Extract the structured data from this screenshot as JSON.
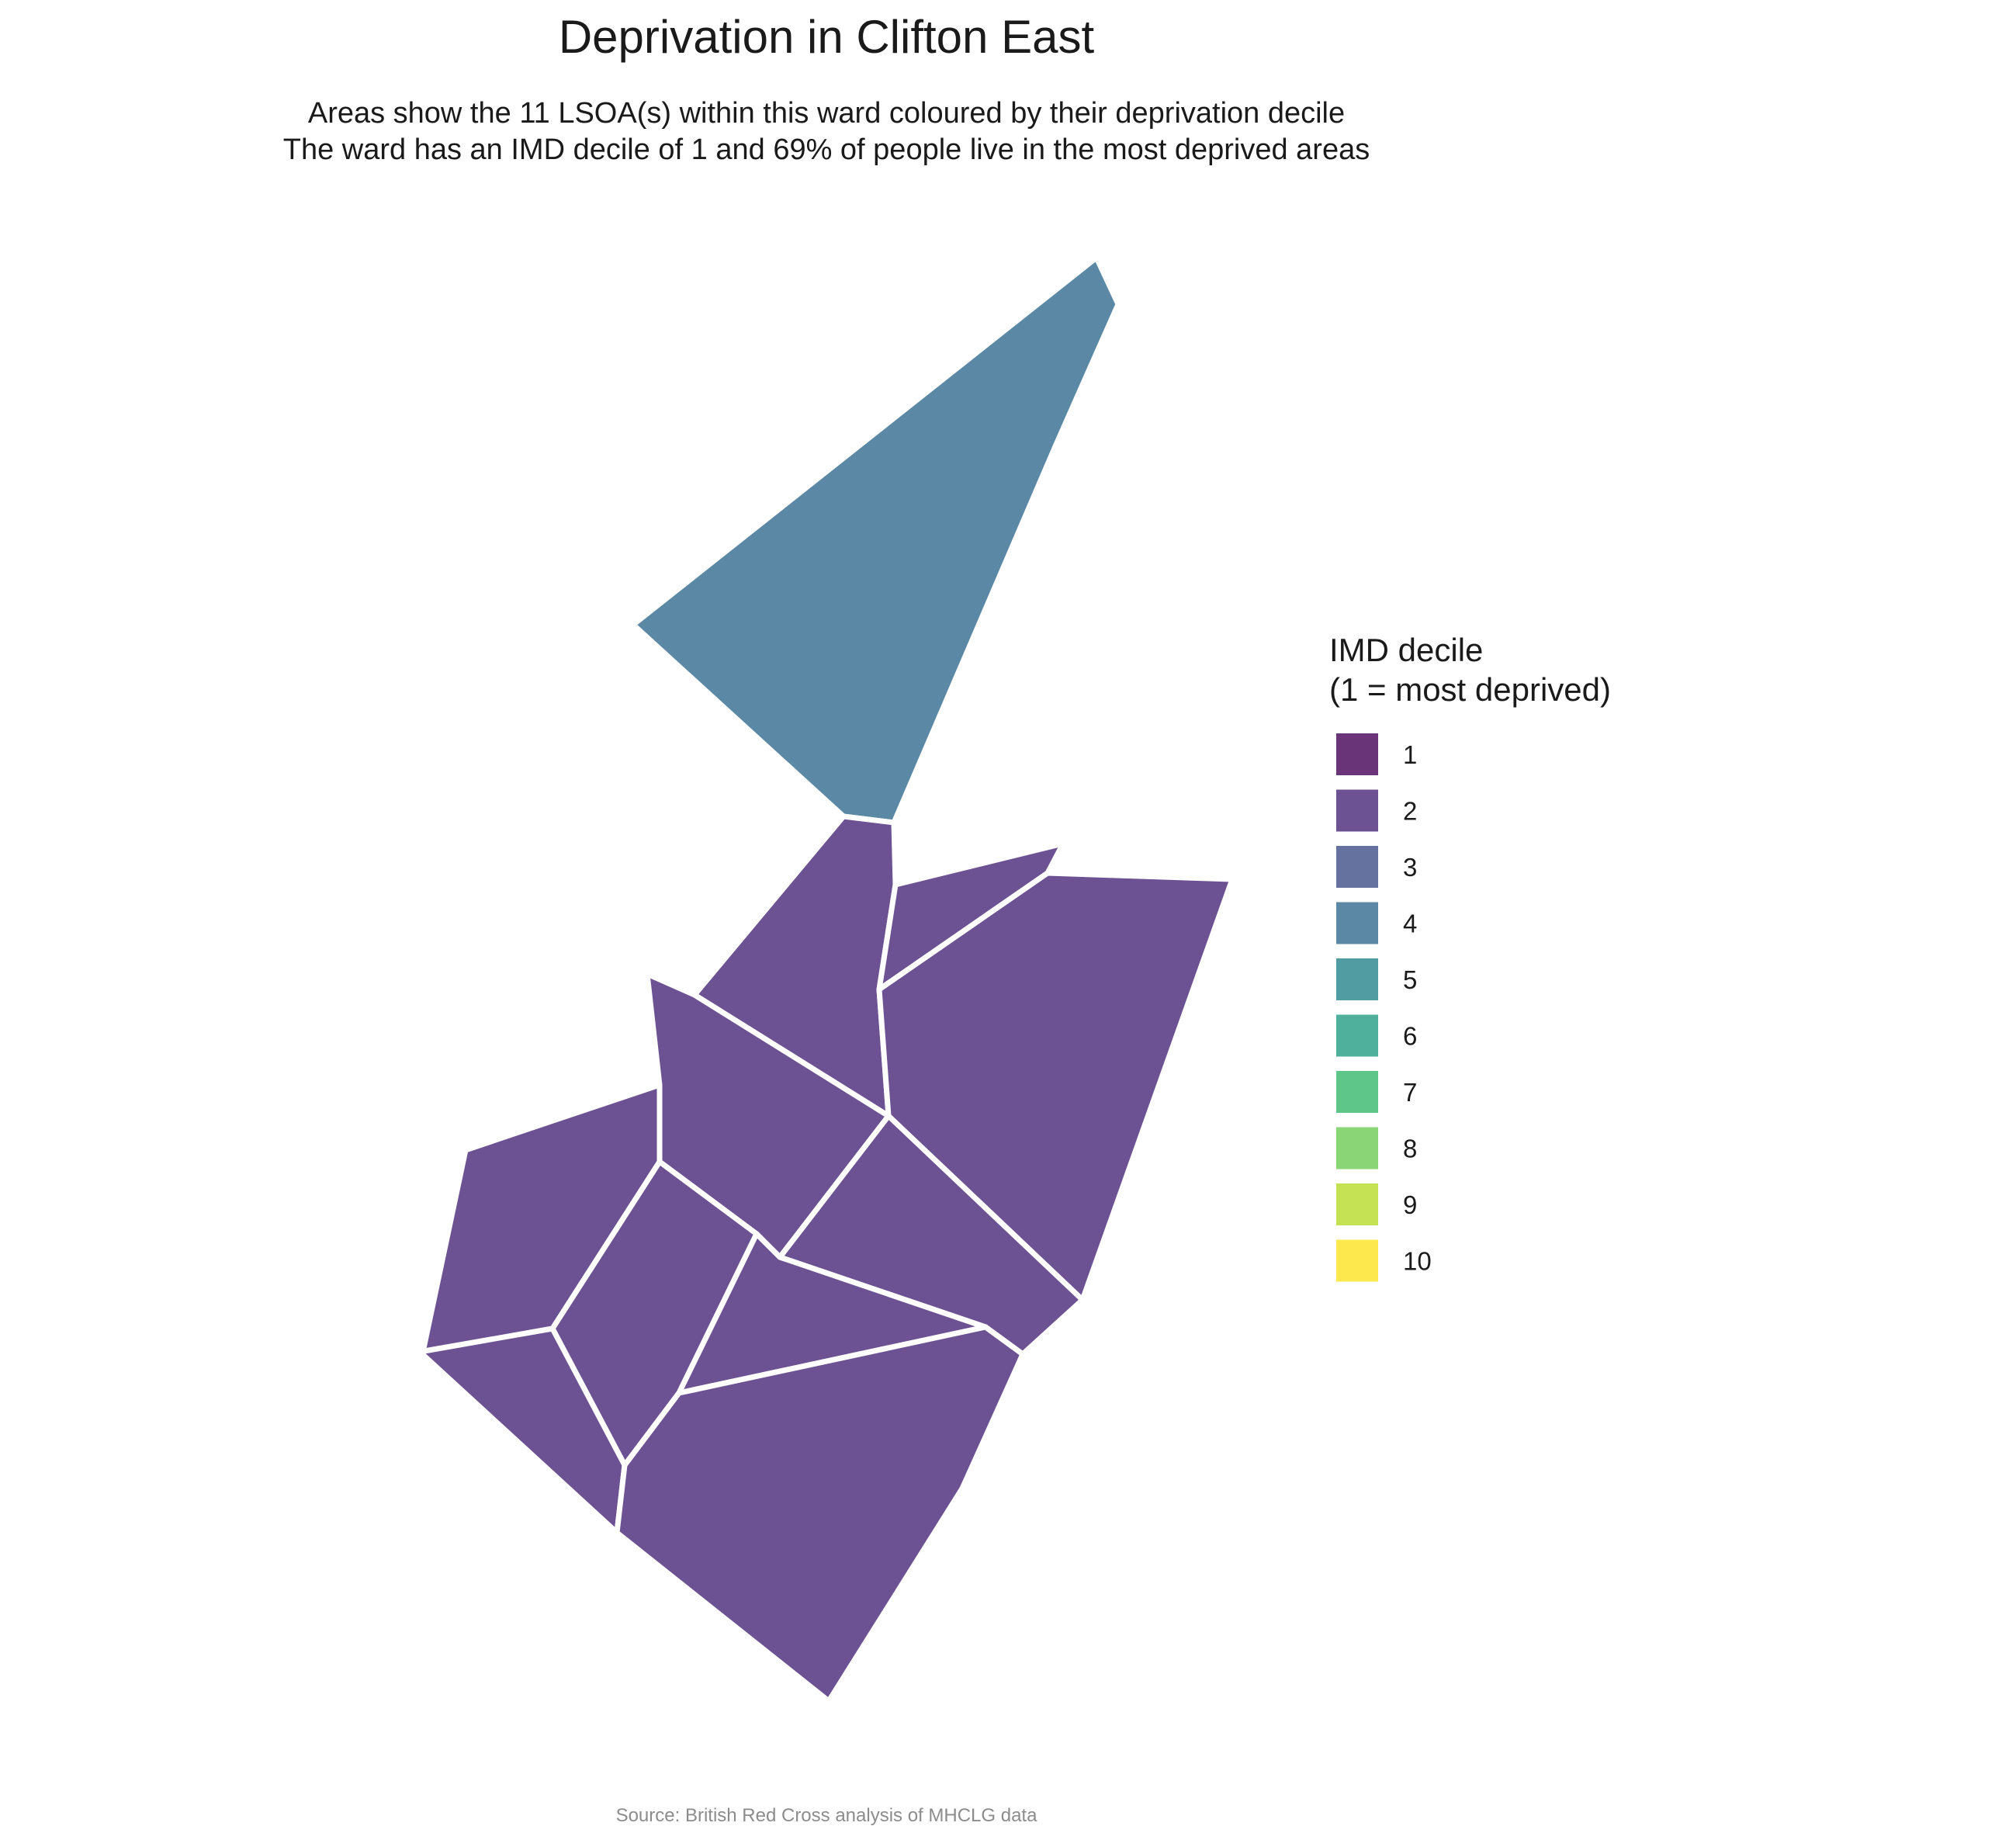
{
  "title": "Deprivation in Clifton East",
  "subtitle": {
    "line1": "Areas show the 11 LSOA(s) within this ward coloured by their deprivation decile",
    "line2": "The ward has an IMD decile of 1 and 69% of people live in the most deprived areas"
  },
  "caption": "Source: British Red Cross analysis of MHCLG data",
  "legend": {
    "title_line1": "IMD decile",
    "title_line2": "(1 = most deprived)",
    "items": [
      {
        "label": "1",
        "color": "#6a3478"
      },
      {
        "label": "2",
        "color": "#6d5293"
      },
      {
        "label": "3",
        "color": "#65719f"
      },
      {
        "label": "4",
        "color": "#5a88a5"
      },
      {
        "label": "5",
        "color": "#519ca3"
      },
      {
        "label": "6",
        "color": "#4fb19c"
      },
      {
        "label": "7",
        "color": "#5fc68a"
      },
      {
        "label": "8",
        "color": "#8ad575"
      },
      {
        "label": "9",
        "color": "#c5e254"
      },
      {
        "label": "10",
        "color": "#fde84e"
      }
    ]
  },
  "areas": [
    {
      "id": "north",
      "decile": 4
    },
    {
      "id": "a",
      "decile": 2
    },
    {
      "id": "b",
      "decile": 2
    },
    {
      "id": "c",
      "decile": 2
    },
    {
      "id": "d",
      "decile": 2
    },
    {
      "id": "e",
      "decile": 2
    },
    {
      "id": "f",
      "decile": 2
    },
    {
      "id": "g",
      "decile": 2
    },
    {
      "id": "h",
      "decile": 2
    },
    {
      "id": "i",
      "decile": 2
    },
    {
      "id": "j",
      "decile": 2
    }
  ]
}
